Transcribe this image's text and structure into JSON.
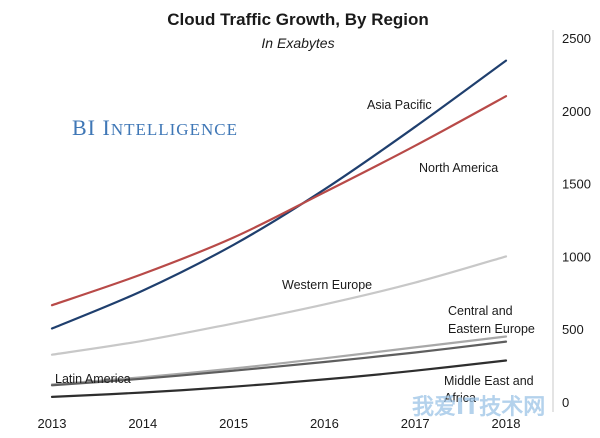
{
  "brand": {
    "big1": "BI ",
    "small1": "I",
    "rest": "NTELLIGENCE"
  },
  "watermark": "我爱IT技术网",
  "chart_data": {
    "type": "line",
    "title": "Cloud Traffic Growth, By Region",
    "subtitle": "In Exabytes",
    "xlabel": "",
    "ylabel": "",
    "x": [
      2013,
      2014,
      2015,
      2016,
      2017,
      2018
    ],
    "x_tick_labels": [
      "2013",
      "2014",
      "2015",
      "2016",
      "2017",
      "2018"
    ],
    "ylim": [
      0,
      2500
    ],
    "y_ticks": [
      0,
      500,
      1000,
      1500,
      2000,
      2500
    ],
    "y_axis_side": "right",
    "grid": false,
    "series": [
      {
        "name": "Asia Pacific",
        "label": "Asia Pacific",
        "color": "#1f3f6e",
        "values": [
          505,
          765,
          1080,
          1460,
          1890,
          2345
        ]
      },
      {
        "name": "North America",
        "label": "North America",
        "color": "#b84a48",
        "values": [
          665,
          880,
          1130,
          1440,
          1760,
          2100
        ]
      },
      {
        "name": "Western Europe",
        "label": "Western Europe",
        "color": "#c8c8c8",
        "values": [
          325,
          420,
          540,
          670,
          820,
          1000
        ]
      },
      {
        "name": "Central and Eastern Europe",
        "label_lines": [
          "Central and",
          "Eastern Europe"
        ],
        "color": "#a8a8a8",
        "values": [
          120,
          170,
          230,
          300,
          375,
          450
        ]
      },
      {
        "name": "Latin America",
        "label": "Latin America",
        "color": "#5e5e5e",
        "values": [
          115,
          160,
          215,
          275,
          340,
          415
        ]
      },
      {
        "name": "Middle East and Africa",
        "label_lines": [
          "Middle East and",
          "Africa"
        ],
        "color": "#2e2e2e",
        "values": [
          35,
          65,
          105,
          155,
          215,
          285
        ]
      }
    ]
  }
}
